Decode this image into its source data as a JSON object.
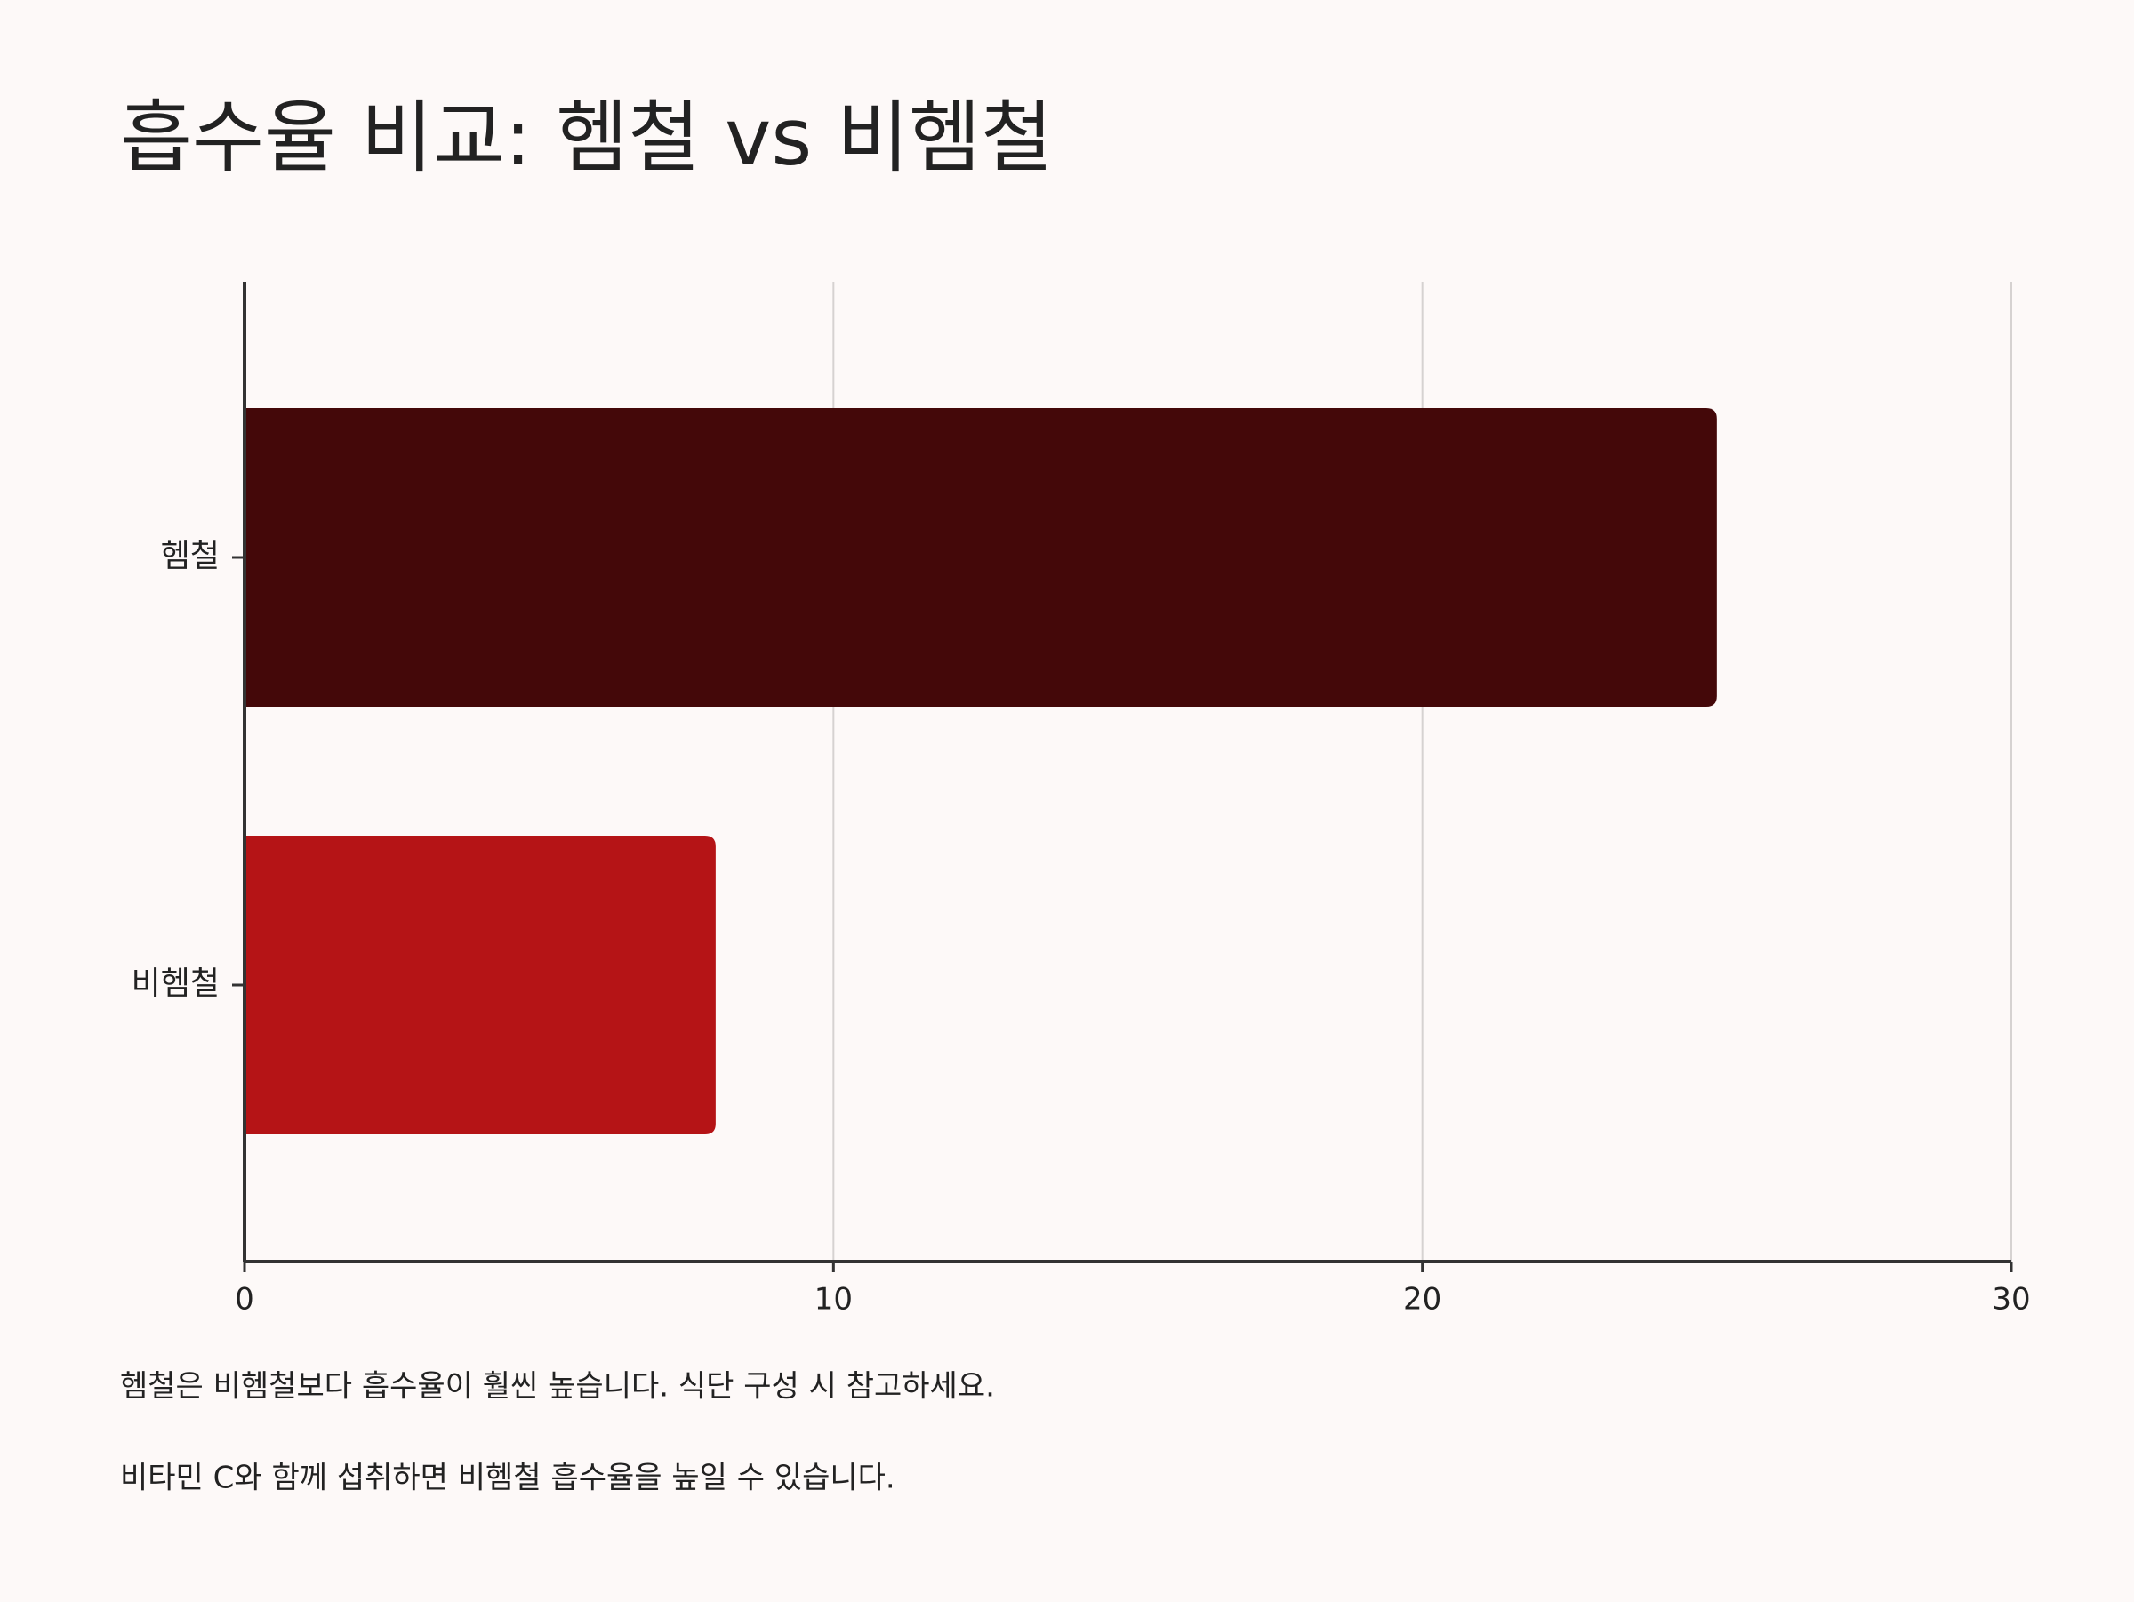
{
  "chart_data": {
    "type": "bar",
    "orientation": "horizontal",
    "title": "흡수율 비교: 헴철 vs 비헴철",
    "categories": [
      "헴철",
      "비헴철"
    ],
    "values": [
      25,
      8
    ],
    "colors": [
      "#440809",
      "#b51416"
    ],
    "xlim": [
      0,
      30
    ],
    "xticks": [
      0,
      10,
      20,
      30
    ],
    "grid": true,
    "notes": [
      "헴철은 비헴철보다 흡수율이 훨씬 높습니다. 식단 구성 시 참고하세요.",
      "비타민 C와 함께 섭취하면 비헴철 흡수율을 높일 수 있습니다."
    ]
  }
}
